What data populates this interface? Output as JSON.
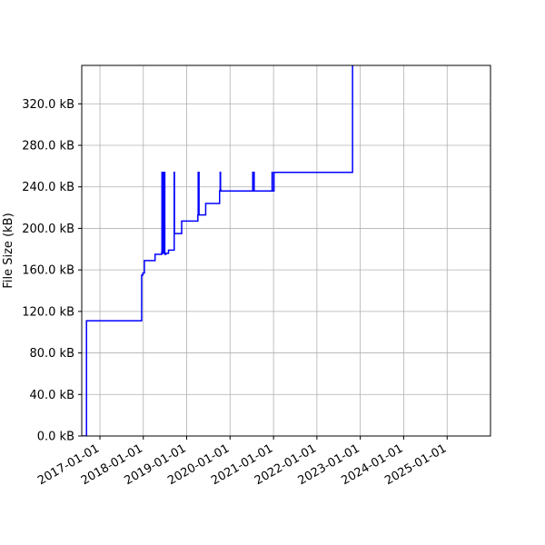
{
  "chart_data": {
    "type": "line",
    "title": "",
    "xlabel": "",
    "ylabel": "File Size (kB)",
    "grid": true,
    "x_range": [
      "2016-08-01",
      "2026-01-01"
    ],
    "ylim": [
      0,
      357
    ],
    "x_ticks": [
      "2017-01-01",
      "2018-01-01",
      "2019-01-01",
      "2020-01-01",
      "2021-01-01",
      "2022-01-01",
      "2023-01-01",
      "2024-01-01",
      "2025-01-01"
    ],
    "y_ticks": [
      0,
      40,
      80,
      120,
      160,
      200,
      240,
      280,
      320
    ],
    "y_tick_labels": [
      "0.0 kB",
      "40.0 kB",
      "80.0 kB",
      "120.0 kB",
      "160.0 kB",
      "200.0 kB",
      "240.0 kB",
      "280.0 kB",
      "320.0 kB"
    ],
    "series": [
      {
        "color": "#0000ff",
        "step": true,
        "x": [
          "2016-08-01",
          "2016-09-05",
          "2016-09-10",
          "2017-12-15",
          "2017-12-18",
          "2017-12-28",
          "2018-01-10",
          "2018-04-10",
          "2018-06-05",
          "2018-06-07",
          "2018-06-10",
          "2018-06-12",
          "2018-06-15",
          "2018-06-17",
          "2018-06-20",
          "2018-06-22",
          "2018-06-25",
          "2018-06-27",
          "2018-07-01",
          "2018-07-03",
          "2018-07-10",
          "2018-08-01",
          "2018-09-18",
          "2018-09-20",
          "2018-09-25",
          "2018-11-20",
          "2019-04-05",
          "2019-04-08",
          "2019-04-15",
          "2019-06-10",
          "2019-10-05",
          "2019-10-10",
          "2019-10-13",
          "2019-10-16",
          "2020-07-10",
          "2020-07-12",
          "2020-07-15",
          "2020-07-17",
          "2020-07-20",
          "2020-07-22",
          "2020-07-25",
          "2020-12-20",
          "2020-12-22",
          "2020-12-25",
          "2021-01-05",
          "2022-10-25",
          "2022-10-28"
        ],
        "y": [
          0,
          0,
          111,
          111,
          155,
          157,
          169,
          175,
          177,
          254,
          176,
          254,
          176,
          254,
          176,
          254,
          176,
          254,
          176,
          175,
          176,
          179,
          254,
          195,
          195,
          207,
          213,
          254,
          213,
          224,
          236,
          254,
          237,
          236,
          254,
          236,
          254,
          236,
          254,
          236,
          236,
          254,
          236,
          236,
          254,
          254,
          360
        ]
      }
    ]
  }
}
